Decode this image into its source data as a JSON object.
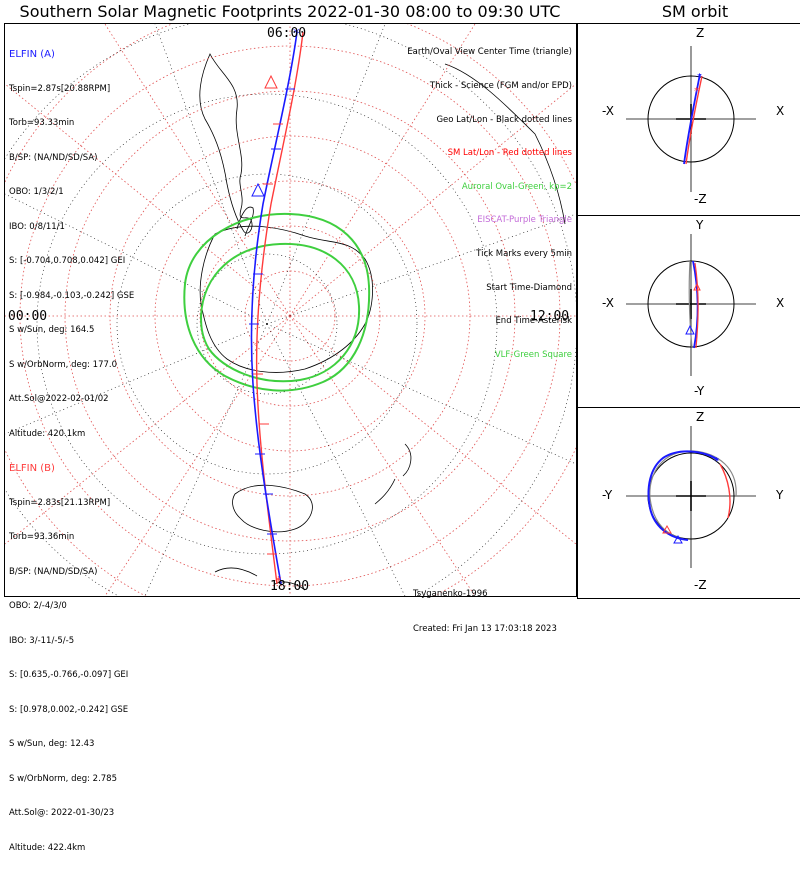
{
  "title": "Southern Solar Magnetic Footprints 2022-01-30 08:00 to 09:30 UTC",
  "sm_title": "SM orbit",
  "probe_a": {
    "name": "ELFIN (A)",
    "lines": [
      "Tspin=2.87s[20.88RPM]",
      "Torb=93.33min",
      "B/SP: (NA/ND/SD/SA)",
      "OBO: 1/3/2/1",
      "IBO: 0/8/11/1",
      "S: [-0.704,0.708,0.042] GEI",
      "S: [-0.984,-0.103,-0.242] GSE",
      "S w/Sun, deg: 164.5",
      "S w/OrbNorm, deg: 177.0",
      "Att.Sol@2022-02-01/02",
      "Altitude: 420.1km"
    ]
  },
  "probe_b": {
    "name": "ELFIN (B)",
    "lines": [
      "Tspin=2.83s[21.13RPM]",
      "Torb=93.36min",
      "B/SP: (NA/ND/SD/SA)",
      "OBO: 2/-4/3/0",
      "IBO: 3/-11/-5/-5",
      "S: [0.635,-0.766,-0.097] GEI",
      "S: [0.978,0.002,-0.242] GSE",
      "S w/Sun, deg: 12.43",
      "S w/OrbNorm, deg: 2.785",
      "Att.Sol@: 2022-01-30/23",
      "Altitude: 422.4km"
    ]
  },
  "legend": {
    "l1": "Earth/Oval View Center Time (triangle)",
    "l2": "Thick - Science (FGM and/or EPD)",
    "l3": "Geo Lat/Lon - Black dotted lines",
    "l4": "SM Lat/Lon - Red dotted lines",
    "l5": "Auroral Oval-Green, kp=2",
    "l6": "EISCAT-Purple Triangle",
    "l7": "Tick Marks every 5min",
    "l8": "Start Time-Diamond",
    "l9": "End Time-Asterisk",
    "l10": "VLF-Green Square"
  },
  "credits": {
    "author": "Tsyganenko-1996",
    "created": "Created: Fri Jan 13 17:03:18 2023"
  },
  "time_labels": {
    "top": "06:00",
    "left": "00:00",
    "right": "12:00",
    "bottom": "18:00"
  },
  "sm_panels": [
    {
      "top": "Z",
      "bottom": "-Z",
      "left": "-X",
      "right": "X"
    },
    {
      "top": "Y",
      "bottom": "-Y",
      "left": "-X",
      "right": "X"
    },
    {
      "top": "Z",
      "bottom": "-Z",
      "left": "-Y",
      "right": "Y"
    }
  ],
  "colors": {
    "probe_a": "#1a1aff",
    "probe_b": "#ff3b3b",
    "oval": "#3fcf3f",
    "sm_grid": "#e05050",
    "geo_grid": "#000000"
  }
}
